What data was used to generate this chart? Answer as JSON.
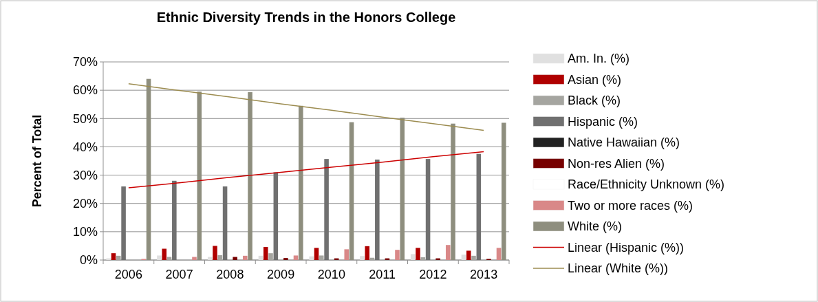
{
  "chart_data": {
    "type": "bar",
    "title": "Ethnic Diversity Trends in the Honors College",
    "ylabel": "Percent of Total",
    "categories": [
      "2006",
      "2007",
      "2008",
      "2009",
      "2010",
      "2011",
      "2012",
      "2013"
    ],
    "series": [
      {
        "name": "Am. In. (%)",
        "color": "#e0e0e0",
        "values": [
          0.6,
          1.6,
          1.1,
          1.5,
          1.3,
          1.4,
          2.1,
          1.9
        ]
      },
      {
        "name": "Asian (%)",
        "color": "#b00000",
        "values": [
          2.4,
          4.0,
          5.0,
          4.6,
          4.3,
          4.9,
          4.3,
          3.3
        ]
      },
      {
        "name": "Black (%)",
        "color": "#a5a5a0",
        "values": [
          1.5,
          1.1,
          1.7,
          2.4,
          1.6,
          0.8,
          1.0,
          1.5
        ]
      },
      {
        "name": "Hispanic (%)",
        "color": "#707070",
        "values": [
          26,
          28,
          26,
          31,
          35.7,
          35.5,
          35.7,
          37.5
        ]
      },
      {
        "name": "Native Hawaiian (%)",
        "color": "#222222",
        "values": [
          0,
          0,
          0,
          0,
          0,
          0,
          0,
          0
        ]
      },
      {
        "name": "Non-res Alien (%)",
        "color": "#770000",
        "values": [
          0,
          0,
          1.1,
          0.7,
          0.6,
          0.6,
          0.6,
          0.4
        ]
      },
      {
        "name": "Race/Ethnicity Unknown (%)",
        "color": "#ffffff",
        "values": [
          0,
          0,
          0,
          0,
          0,
          0,
          0,
          0
        ]
      },
      {
        "name": "Two or more races (%)",
        "color": "#d98888",
        "values": [
          0.4,
          1.1,
          1.5,
          1.6,
          3.8,
          3.6,
          5.3,
          4.3
        ]
      },
      {
        "name": "White (%)",
        "color": "#8e8e7e",
        "values": [
          64,
          59.5,
          59.3,
          54.5,
          48.7,
          50.3,
          48.2,
          48.5
        ]
      },
      {
        "name": "Linear (Hispanic (%))",
        "type": "line",
        "color": "#cc0000",
        "values": [
          25.5,
          27.3,
          29.2,
          31.0,
          32.8,
          34.6,
          36.5,
          38.3
        ]
      },
      {
        "name": "Linear (White (%))",
        "type": "line",
        "color": "#9c8c50",
        "values": [
          62.3,
          59.9,
          57.6,
          55.2,
          52.9,
          50.5,
          48.2,
          45.8
        ]
      }
    ],
    "ylim": [
      0,
      70
    ],
    "yticks": [
      {
        "value": 0,
        "label": "0%"
      },
      {
        "value": 10,
        "label": "10%"
      },
      {
        "value": 20,
        "label": "20%"
      },
      {
        "value": 30,
        "label": "30%"
      },
      {
        "value": 40,
        "label": "40%"
      },
      {
        "value": 50,
        "label": "50%"
      },
      {
        "value": 60,
        "label": "60%"
      },
      {
        "value": 70,
        "label": "70%"
      }
    ],
    "grid": "y",
    "legend": "right"
  }
}
